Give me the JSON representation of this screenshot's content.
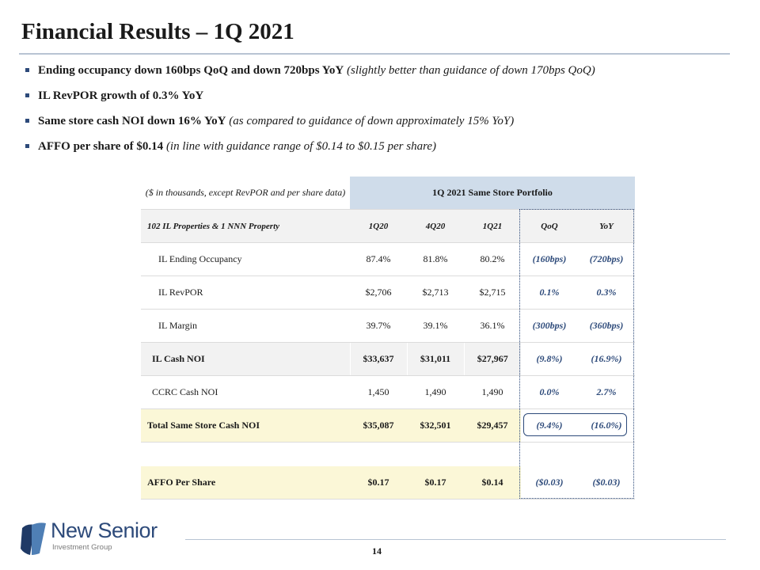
{
  "title": "Financial Results – 1Q 2021",
  "bullets": [
    {
      "bold": "Ending occupancy down 160bps QoQ and down 720bps YoY",
      "italic": "(slightly better than guidance of down 170bps QoQ)"
    },
    {
      "bold": "IL RevPOR growth of 0.3% YoY",
      "italic": ""
    },
    {
      "bold": "Same store cash NOI down 16% YoY",
      "italic": "(as compared to guidance of down approximately 15% YoY)"
    },
    {
      "bold": "AFFO per share of $0.14",
      "italic": "(in line with guidance range of $0.14 to $0.15 per share)"
    }
  ],
  "table": {
    "note": "($ in thousands, except RevPOR and per share data)",
    "portfolio_header": "1Q 2021 Same Store Portfolio",
    "row_header_label": "102 IL Properties & 1 NNN Property",
    "columns": [
      "1Q20",
      "4Q20",
      "1Q21",
      "QoQ",
      "YoY"
    ],
    "rows": [
      {
        "label": "IL Ending Occupancy",
        "values": [
          "87.4%",
          "81.8%",
          "80.2%",
          "(160bps)",
          "(720bps)"
        ]
      },
      {
        "label": "IL RevPOR",
        "values": [
          "$2,706",
          "$2,713",
          "$2,715",
          "0.1%",
          "0.3%"
        ]
      },
      {
        "label": "IL Margin",
        "values": [
          "39.7%",
          "39.1%",
          "36.1%",
          "(300bps)",
          "(360bps)"
        ]
      },
      {
        "label": "IL Cash NOI",
        "values": [
          "$33,637",
          "$31,011",
          "$27,967",
          "(9.8%)",
          "(16.9%)"
        ]
      },
      {
        "label": "CCRC Cash NOI",
        "values": [
          "1,450",
          "1,490",
          "1,490",
          "0.0%",
          "2.7%"
        ]
      },
      {
        "label": "Total Same Store Cash NOI",
        "values": [
          "$35,087",
          "$32,501",
          "$29,457",
          "(9.4%)",
          "(16.0%)"
        ]
      },
      {
        "label": "AFFO Per Share",
        "values": [
          "$0.17",
          "$0.17",
          "$0.14",
          "($0.03)",
          "($0.03)"
        ]
      }
    ]
  },
  "logo": {
    "name": "New Senior",
    "subtitle": "Investment Group"
  },
  "page_number": "14",
  "colors": {
    "accent": "#2d4a7a",
    "header_fill": "#cfdcea",
    "total_fill": "#fbf7d7",
    "row_fill": "#f2f2f2"
  }
}
